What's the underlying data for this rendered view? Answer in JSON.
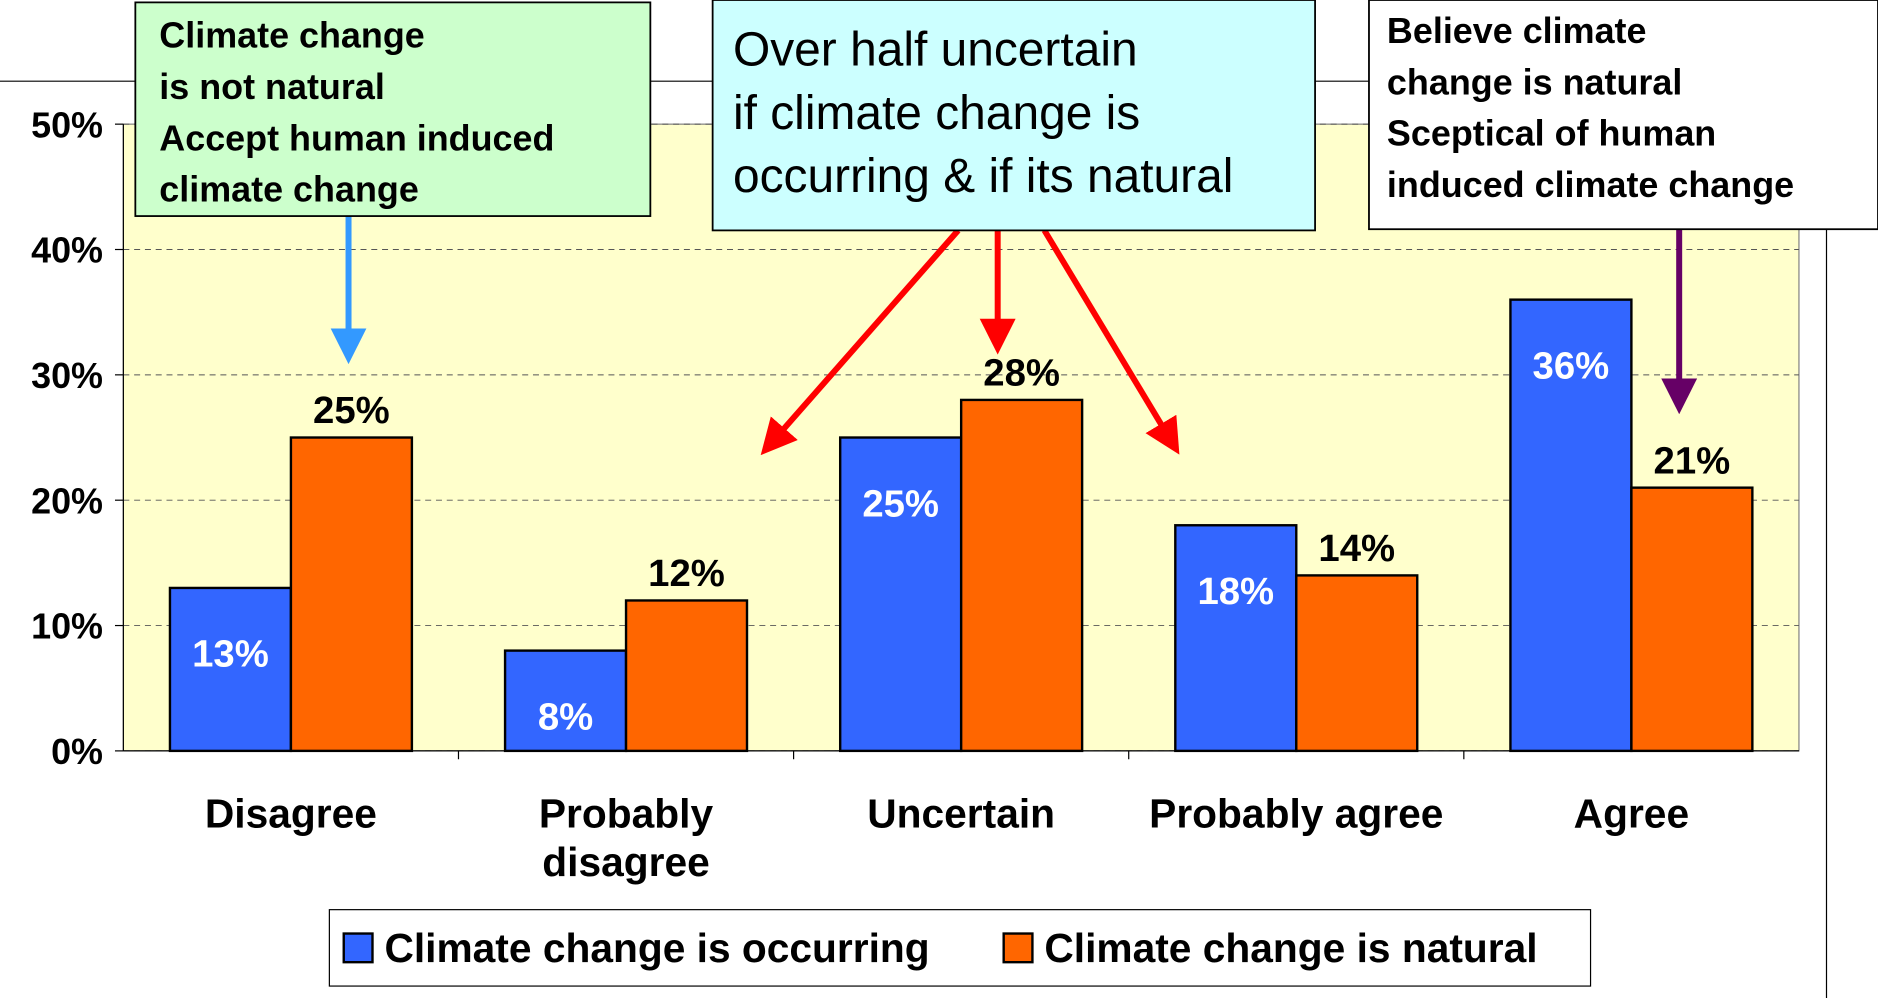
{
  "chart_data": {
    "type": "bar",
    "categories": [
      "Disagree",
      "Probably disagree",
      "Uncertain",
      "Probably agree",
      "Agree"
    ],
    "series": [
      {
        "name": "Climate change is occurring",
        "color": "#3366ff",
        "values": [
          13,
          8,
          25,
          18,
          36
        ],
        "value_labels": [
          "13%",
          "8%",
          "25%",
          "18%",
          "36%"
        ]
      },
      {
        "name": "Climate change is natural",
        "color": "#ff6600",
        "values": [
          25,
          12,
          28,
          14,
          21
        ],
        "value_labels": [
          "25%",
          "12%",
          "28%",
          "14%",
          "21%"
        ]
      }
    ],
    "ylim": [
      0,
      50
    ],
    "yticks": [
      {
        "value": 0,
        "label": "0%"
      },
      {
        "value": 10,
        "label": "10%"
      },
      {
        "value": 20,
        "label": "20%"
      },
      {
        "value": 30,
        "label": "30%"
      },
      {
        "value": 40,
        "label": "40%"
      },
      {
        "value": 50,
        "label": "50%"
      }
    ],
    "grid": true,
    "annotations": [
      {
        "lines": [
          "Climate change",
          "is not natural",
          "Accept human induced",
          " climate change"
        ]
      },
      {
        "lines": [
          "Over half uncertain",
          "if climate change is",
          "occurring & if its natural"
        ]
      },
      {
        "lines": [
          "Believe climate",
          "change is natural",
          "Sceptical of human",
          "induced climate change"
        ]
      }
    ]
  }
}
